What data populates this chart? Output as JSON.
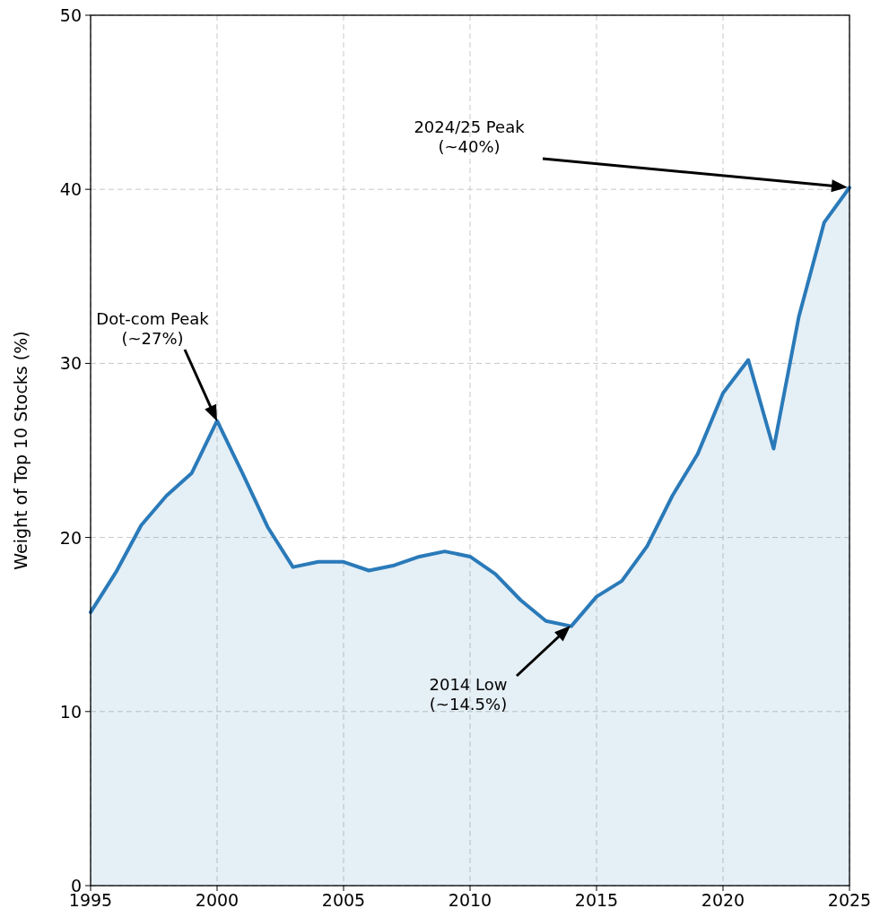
{
  "chart_data": {
    "type": "area",
    "ylabel": "Weight of Top 10 Stocks (%)",
    "x": [
      1995,
      1996,
      1997,
      1998,
      1999,
      2000,
      2001,
      2002,
      2003,
      2004,
      2005,
      2006,
      2007,
      2008,
      2009,
      2010,
      2011,
      2012,
      2013,
      2014,
      2015,
      2016,
      2017,
      2018,
      2019,
      2020,
      2021,
      2022,
      2023,
      2024,
      2025
    ],
    "series": [
      {
        "color": "#2a7ab9",
        "values": [
          15.7,
          18.0,
          20.7,
          22.4,
          23.7,
          26.7,
          23.7,
          20.6,
          18.3,
          18.6,
          18.6,
          18.1,
          18.4,
          18.9,
          19.2,
          18.9,
          17.9,
          16.4,
          15.2,
          14.9,
          16.6,
          17.5,
          19.5,
          22.4,
          24.8,
          28.3,
          30.2,
          25.1,
          32.7,
          38.1,
          40.1
        ]
      }
    ],
    "xlim": [
      1995,
      2025
    ],
    "xticks": [
      1995,
      2000,
      2005,
      2010,
      2015,
      2020,
      2025
    ],
    "ylim": [
      0,
      50
    ],
    "yticks": [
      0,
      10,
      20,
      30,
      40,
      50
    ],
    "grid": true,
    "annotations": [
      "Dot-com Peak\n(~27%)",
      "2014 Low\n(~14.5%)",
      "2024/25 Peak\n(~40%)"
    ]
  }
}
